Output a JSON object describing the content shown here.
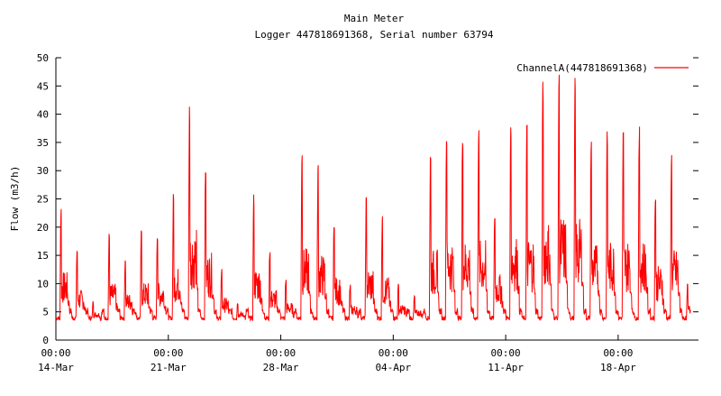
{
  "chart_data": {
    "type": "line",
    "title": "Main Meter",
    "subtitle": "Logger 447818691368, Serial number 63794",
    "ylabel": "Flow (m3/h)",
    "xlabel": "",
    "ylim": [
      0,
      50
    ],
    "xlim": [
      "2014-03-14 00:00",
      "2014-04-23 00:00"
    ],
    "yticks": [
      "0",
      "5",
      "10",
      "15",
      "20",
      "25",
      "30",
      "35",
      "40",
      "45",
      "50"
    ],
    "xticks": [
      {
        "time": "00:00",
        "date": "14-Mar"
      },
      {
        "time": "00:00",
        "date": "21-Mar"
      },
      {
        "time": "00:00",
        "date": "28-Mar"
      },
      {
        "time": "00:00",
        "date": "04-Apr"
      },
      {
        "time": "00:00",
        "date": "11-Apr"
      },
      {
        "time": "00:00",
        "date": "18-Apr"
      }
    ],
    "grid": false,
    "legend_position": "top-right",
    "series": [
      {
        "name": "ChannelA(447818691368)",
        "color": "#ff0000",
        "daily_peak_m3h": [
          24,
          16.5,
          7,
          19,
          15,
          19.5,
          19.5,
          26,
          42.5,
          32,
          13,
          7,
          26,
          16.5,
          11,
          34,
          31.5,
          22,
          10,
          25.5,
          22,
          10,
          8,
          33.5,
          38,
          37.5,
          37.5,
          23,
          39.5,
          38.5,
          46,
          47.5,
          46.5,
          36,
          37,
          37.5,
          38,
          26.5,
          33.5,
          10
        ],
        "night_min_m3h": 3.5,
        "x_start": "2014-03-14 00:00",
        "x_end": "2014-04-22 12:00"
      }
    ]
  }
}
